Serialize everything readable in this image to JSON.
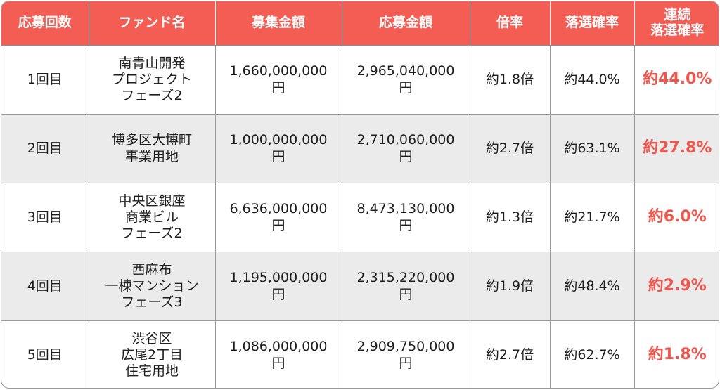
{
  "headers": {
    "round": "応募回数",
    "fund": "ファンド名",
    "raised": "募集金額",
    "applied": "応募金額",
    "ratio": "倍率",
    "lose_rate": "落選確率",
    "cumulative": "連続\n落選確率"
  },
  "rows": [
    {
      "round": "1回目",
      "fund": "南青山開発\nプロジェクト\nフェーズ2",
      "raised": "1,660,000,000\n円",
      "applied": "2,965,040,000\n円",
      "ratio": "約1.8倍",
      "lose_rate": "約44.0%",
      "cumulative": "約44.0%"
    },
    {
      "round": "2回目",
      "fund": "博多区大博町\n事業用地",
      "raised": "1,000,000,000\n円",
      "applied": "2,710,060,000\n円",
      "ratio": "約2.7倍",
      "lose_rate": "約63.1%",
      "cumulative": "約27.8%"
    },
    {
      "round": "3回目",
      "fund": "中央区銀座\n商業ビル\nフェーズ2",
      "raised": "6,636,000,000\n円",
      "applied": "8,473,130,000\n円",
      "ratio": "約1.3倍",
      "lose_rate": "約21.7%",
      "cumulative": "約6.0%"
    },
    {
      "round": "4回目",
      "fund": "西麻布\n一棟マンション\nフェーズ3",
      "raised": "1,195,000,000\n円",
      "applied": "2,315,220,000\n円",
      "ratio": "約1.9倍",
      "lose_rate": "約48.4%",
      "cumulative": "約2.9%"
    },
    {
      "round": "5回目",
      "fund": "渋谷区\n広尾2丁目\n住宅用地",
      "raised": "1,086,000,000\n円",
      "applied": "2,909,750,000\n円",
      "ratio": "約2.7倍",
      "lose_rate": "約62.7%",
      "cumulative": "約1.8%"
    }
  ],
  "colors": {
    "header_bg": "#f35d54",
    "accent_text": "#f0564d",
    "alt_row_bg": "#ebebeb"
  }
}
